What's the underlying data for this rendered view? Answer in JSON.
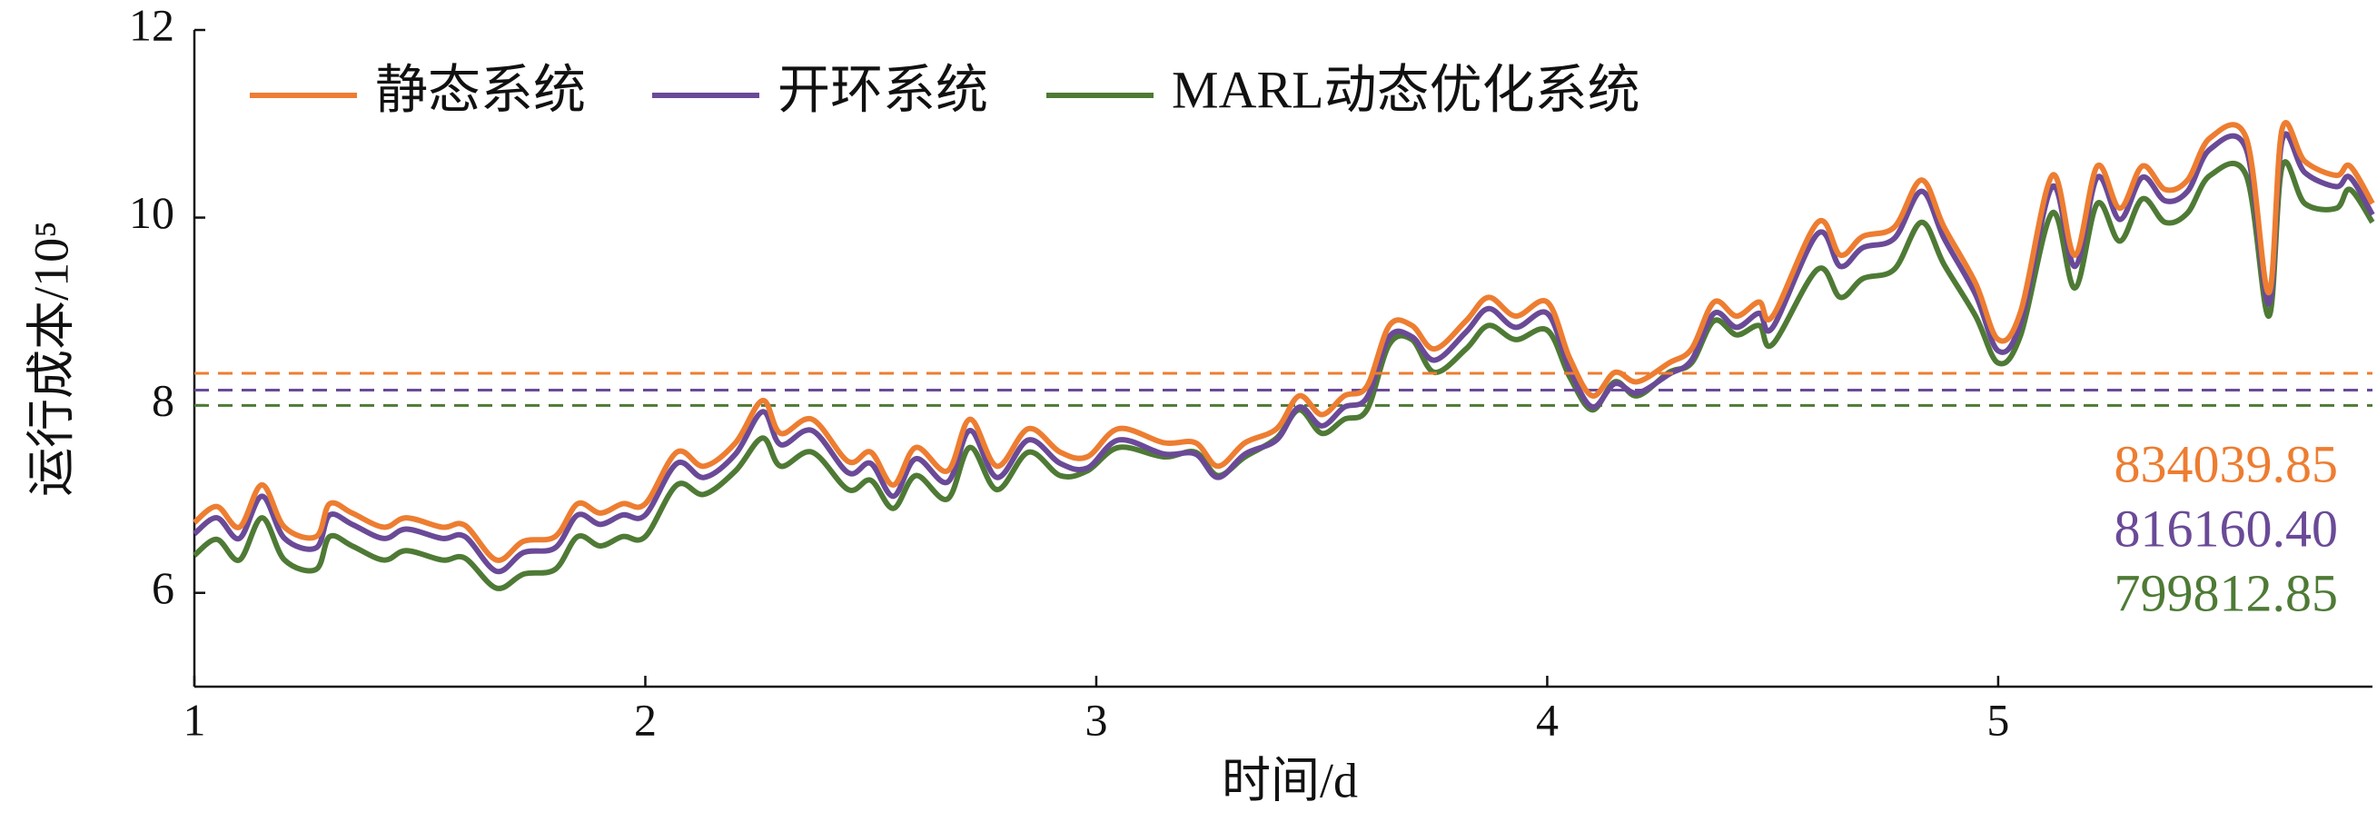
{
  "chart_data": {
    "type": "line",
    "xlabel": "时间/d",
    "ylabel": "运行成本/10⁵",
    "xlim": [
      1,
      5.83
    ],
    "ylim": [
      5,
      12
    ],
    "xticks": [
      1,
      2,
      3,
      4,
      5
    ],
    "yticks": [
      6,
      8,
      10,
      12
    ],
    "legend": "top-left",
    "x": [
      1.0,
      1.05,
      1.1,
      1.15,
      1.2,
      1.27,
      1.3,
      1.35,
      1.42,
      1.47,
      1.55,
      1.6,
      1.67,
      1.73,
      1.8,
      1.85,
      1.9,
      1.95,
      2.0,
      2.07,
      2.13,
      2.2,
      2.26,
      2.3,
      2.37,
      2.45,
      2.5,
      2.55,
      2.6,
      2.67,
      2.72,
      2.78,
      2.85,
      2.92,
      2.98,
      3.05,
      3.15,
      3.22,
      3.27,
      3.33,
      3.4,
      3.45,
      3.5,
      3.55,
      3.6,
      3.65,
      3.7,
      3.75,
      3.82,
      3.87,
      3.93,
      4.0,
      4.05,
      4.1,
      4.15,
      4.2,
      4.27,
      4.32,
      4.37,
      4.42,
      4.47,
      4.5,
      4.6,
      4.65,
      4.7,
      4.77,
      4.83,
      4.88,
      4.95,
      5.0,
      5.05,
      5.12,
      5.17,
      5.22,
      5.27,
      5.32,
      5.37,
      5.42,
      5.47,
      5.55,
      5.6,
      5.63,
      5.68,
      5.75,
      5.78,
      5.83
    ],
    "series": [
      {
        "name": "静态系统",
        "color": "#ed7d31",
        "mean": 8.3403985,
        "mean_label": "834039.85",
        "values": [
          6.75,
          6.92,
          6.7,
          7.15,
          6.7,
          6.6,
          6.95,
          6.85,
          6.7,
          6.8,
          6.7,
          6.72,
          6.35,
          6.55,
          6.6,
          6.95,
          6.85,
          6.95,
          6.95,
          7.5,
          7.35,
          7.6,
          8.05,
          7.7,
          7.85,
          7.4,
          7.5,
          7.15,
          7.55,
          7.3,
          7.85,
          7.35,
          7.75,
          7.5,
          7.45,
          7.75,
          7.6,
          7.6,
          7.35,
          7.6,
          7.75,
          8.1,
          7.9,
          8.1,
          8.2,
          8.85,
          8.85,
          8.6,
          8.9,
          9.15,
          8.95,
          9.1,
          8.5,
          8.1,
          8.35,
          8.25,
          8.45,
          8.6,
          9.1,
          8.95,
          9.1,
          8.95,
          9.95,
          9.6,
          9.8,
          9.9,
          10.4,
          9.9,
          9.3,
          8.7,
          9.0,
          10.45,
          9.6,
          10.55,
          10.1,
          10.55,
          10.3,
          10.4,
          10.85,
          10.85,
          9.2,
          10.95,
          10.6,
          10.45,
          10.55,
          10.15
        ]
      },
      {
        "name": "开环系统",
        "color": "#6a4a97",
        "mean": 8.161604,
        "mean_label": "816160.40",
        "values": [
          6.63,
          6.8,
          6.58,
          7.03,
          6.58,
          6.48,
          6.83,
          6.73,
          6.58,
          6.68,
          6.58,
          6.6,
          6.23,
          6.43,
          6.48,
          6.83,
          6.73,
          6.83,
          6.83,
          7.38,
          7.23,
          7.48,
          7.93,
          7.58,
          7.73,
          7.28,
          7.38,
          7.03,
          7.43,
          7.18,
          7.73,
          7.23,
          7.63,
          7.38,
          7.33,
          7.63,
          7.48,
          7.48,
          7.23,
          7.48,
          7.63,
          7.98,
          7.78,
          7.98,
          8.08,
          8.73,
          8.73,
          8.48,
          8.78,
          9.03,
          8.83,
          8.98,
          8.38,
          7.98,
          8.23,
          8.13,
          8.33,
          8.48,
          8.98,
          8.83,
          8.98,
          8.83,
          9.83,
          9.48,
          9.68,
          9.78,
          10.28,
          9.78,
          9.18,
          8.58,
          8.88,
          10.33,
          9.48,
          10.43,
          9.98,
          10.43,
          10.18,
          10.28,
          10.73,
          10.73,
          9.08,
          10.83,
          10.48,
          10.33,
          10.43,
          10.03
        ]
      },
      {
        "name": "MARL动态优化系统",
        "color": "#4e7a35",
        "mean": 7.9981285,
        "mean_label": "799812.85",
        "values": [
          6.4,
          6.57,
          6.35,
          6.8,
          6.35,
          6.25,
          6.6,
          6.5,
          6.35,
          6.45,
          6.35,
          6.37,
          6.05,
          6.2,
          6.25,
          6.6,
          6.5,
          6.6,
          6.6,
          7.15,
          7.05,
          7.3,
          7.65,
          7.35,
          7.5,
          7.1,
          7.2,
          6.9,
          7.25,
          7.0,
          7.55,
          7.1,
          7.5,
          7.25,
          7.3,
          7.55,
          7.45,
          7.5,
          7.25,
          7.45,
          7.65,
          7.95,
          7.7,
          7.85,
          7.95,
          8.65,
          8.7,
          8.35,
          8.6,
          8.85,
          8.7,
          8.8,
          8.3,
          7.95,
          8.25,
          8.1,
          8.35,
          8.45,
          8.9,
          8.75,
          8.85,
          8.65,
          9.45,
          9.15,
          9.35,
          9.45,
          9.95,
          9.5,
          8.95,
          8.45,
          8.75,
          10.05,
          9.25,
          10.15,
          9.75,
          10.2,
          9.95,
          10.05,
          10.45,
          10.45,
          8.95,
          10.55,
          10.15,
          10.1,
          10.3,
          9.95
        ]
      }
    ]
  }
}
